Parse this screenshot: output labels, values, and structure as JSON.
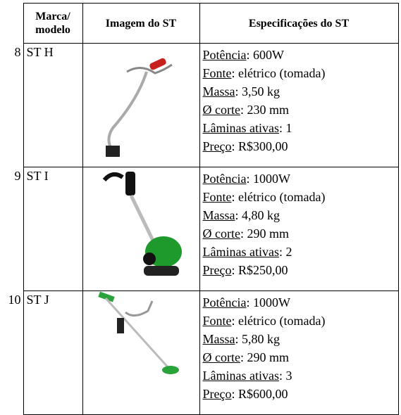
{
  "table": {
    "header": {
      "brand_line1": "Marca/",
      "brand_line2": "modelo",
      "image": "Imagem do ST",
      "specs": "Especificações do ST"
    },
    "rows": [
      {
        "number": 8,
        "model": "ST H",
        "specs": [
          {
            "label": "Potência",
            "value": ": 600W"
          },
          {
            "label": "Fonte",
            "value": ": elétrico (tomada)"
          },
          {
            "label": "Massa",
            "value": ": 3,50 kg"
          },
          {
            "label": "Ø corte",
            "value": ": 230 mm"
          },
          {
            "label": "Lâminas ativas",
            "value": ": 1"
          },
          {
            "label": "Preço",
            "value": ": R$300,00"
          }
        ]
      },
      {
        "number": 9,
        "model": "ST I",
        "specs": [
          {
            "label": "Potência",
            "value": ": 1000W"
          },
          {
            "label": "Fonte",
            "value": ": elétrico (tomada)"
          },
          {
            "label": "Massa",
            "value": ": 4,80 kg"
          },
          {
            "label": "Ø corte",
            "value": ": 290 mm"
          },
          {
            "label": "Lâminas ativas",
            "value": ": 2"
          },
          {
            "label": "Preço",
            "value": ": R$250,00"
          }
        ]
      },
      {
        "number": 10,
        "model": "ST J",
        "specs": [
          {
            "label": "Potência",
            "value": ": 1000W"
          },
          {
            "label": "Fonte",
            "value": ": elétrico (tomada)"
          },
          {
            "label": "Massa",
            "value": ": 5,80 kg"
          },
          {
            "label": "Ø corte",
            "value": ": 290 mm"
          },
          {
            "label": "Lâminas ativas",
            "value": ": 3"
          },
          {
            "label": "Preço",
            "value": ": R$600,00"
          }
        ]
      }
    ]
  }
}
